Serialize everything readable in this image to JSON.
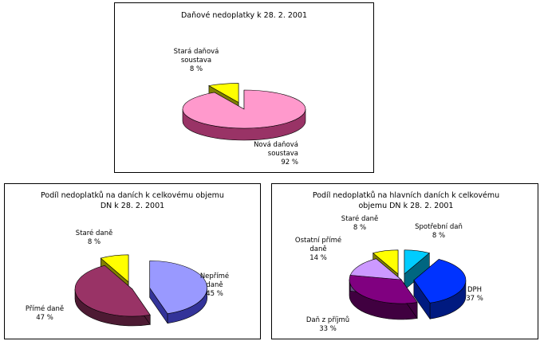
{
  "chart_data": [
    {
      "type": "pie",
      "title": "Daňové nedoplatky k  28. 2. 2001",
      "slices": [
        {
          "label": [
            "Nová daňová",
            "soustava"
          ],
          "pct_label": "92 %",
          "value": 92,
          "color": "#ff99cc",
          "side": "#993366"
        },
        {
          "label": [
            "Stará daňová",
            "soustava"
          ],
          "pct_label": "8 %",
          "value": 8,
          "color": "#ffff00",
          "side": "#808000"
        }
      ]
    },
    {
      "type": "pie",
      "title": [
        "Podíl nedoplatků na daních k celkovému objemu",
        "DN k  28. 2. 2001"
      ],
      "slices": [
        {
          "label": [
            "Nepřímé",
            "daně"
          ],
          "pct_label": "45 %",
          "value": 45,
          "color": "#9999ff",
          "side": "#333399"
        },
        {
          "label": [
            "Přímé daně"
          ],
          "pct_label": "47 %",
          "value": 47,
          "color": "#993366",
          "side": "#4d1a33"
        },
        {
          "label": [
            "Staré daně"
          ],
          "pct_label": "8 %",
          "value": 8,
          "color": "#ffff00",
          "side": "#808000"
        }
      ]
    },
    {
      "type": "pie",
      "title": [
        "Podíl nedoplatků na hlavních daních k celkovému",
        "objemu DN k 28. 2. 2001"
      ],
      "slices": [
        {
          "label": [
            "Spotřební daň"
          ],
          "pct_label": "8 %",
          "value": 8,
          "color": "#00ccff",
          "side": "#006680"
        },
        {
          "label": [
            "DPH"
          ],
          "pct_label": "37 %",
          "value": 37,
          "color": "#0033ff",
          "side": "#001a80"
        },
        {
          "label": [
            "Daň z příjmů"
          ],
          "pct_label": "33 %",
          "value": 33,
          "color": "#800080",
          "side": "#400040"
        },
        {
          "label": [
            "Ostatní přímé",
            "daně"
          ],
          "pct_label": "14 %",
          "value": 14,
          "color": "#cc99ff",
          "side": "#664d80"
        },
        {
          "label": [
            "Staré daně"
          ],
          "pct_label": "8 %",
          "value": 8,
          "color": "#ffff00",
          "side": "#808000"
        }
      ]
    }
  ]
}
